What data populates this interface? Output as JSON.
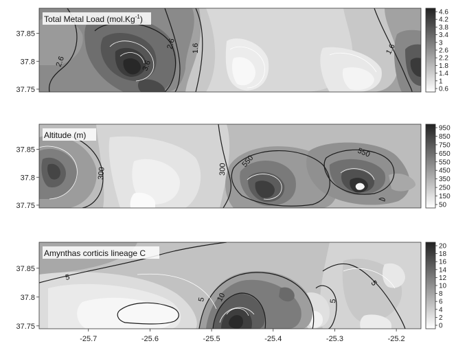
{
  "chart_data": [
    {
      "type": "heatmap",
      "title": "Total Metal Load (mol.Kg",
      "title_superscript": "-1",
      "title_suffix": ")",
      "xlim": [
        -25.78,
        -25.16
      ],
      "ylim": [
        37.745,
        37.895
      ],
      "yticks": [
        37.75,
        37.8,
        37.85
      ],
      "ytick_labels": [
        "37.75",
        "37.8",
        "37.85"
      ],
      "colorbar_ticks": [
        4.6,
        4.2,
        3.8,
        3.4,
        3,
        2.6,
        2.2,
        1.8,
        1.4,
        1,
        0.6
      ],
      "colorbar_labels": [
        "4.6",
        "4.2",
        "3.8",
        "3.4",
        "3",
        "2.6",
        "2.2",
        "1.8",
        "1.4",
        "1",
        "0.6"
      ],
      "contour_labels": [
        "2.6",
        "3.6",
        "2.6",
        "1.6",
        "1.6"
      ],
      "field": [
        {
          "x": -25.64,
          "y": 37.795,
          "value": 4.6
        },
        {
          "x": -25.62,
          "y": 37.76,
          "value": 3.8
        },
        {
          "x": -25.39,
          "y": 37.795,
          "value": 0.6
        },
        {
          "x": -25.29,
          "y": 37.8,
          "value": 1.0
        },
        {
          "x": -25.17,
          "y": 37.805,
          "value": 3.4
        },
        {
          "x": -25.76,
          "y": 37.87,
          "value": 2.6
        }
      ]
    },
    {
      "type": "heatmap",
      "title": "Altitude (m)",
      "xlim": [
        -25.78,
        -25.16
      ],
      "ylim": [
        37.745,
        37.895
      ],
      "yticks": [
        37.75,
        37.8,
        37.85
      ],
      "ytick_labels": [
        "37.75",
        "37.8",
        "37.85"
      ],
      "colorbar_ticks": [
        950,
        850,
        750,
        650,
        550,
        450,
        350,
        250,
        150,
        50
      ],
      "colorbar_labels": [
        "950",
        "850",
        "750",
        "650",
        "550",
        "450",
        "350",
        "250",
        "150",
        "50"
      ],
      "contour_labels": [
        "300",
        "300",
        "550",
        "550"
      ],
      "field": [
        {
          "x": -25.765,
          "y": 37.825,
          "value": 750
        },
        {
          "x": -25.445,
          "y": 37.785,
          "value": 750
        },
        {
          "x": -25.255,
          "y": 37.8,
          "value": 950
        },
        {
          "x": -25.61,
          "y": 37.775,
          "value": 50
        },
        {
          "x": -25.6,
          "y": 37.83,
          "value": 150
        }
      ]
    },
    {
      "type": "heatmap",
      "title": "Amynthas corticis lineage C",
      "xlim": [
        -25.78,
        -25.16
      ],
      "ylim": [
        37.745,
        37.895
      ],
      "xticks": [
        -25.7,
        -25.6,
        -25.5,
        -25.4,
        -25.3,
        -25.2
      ],
      "xtick_labels": [
        "-25.7",
        "-25.6",
        "-25.5",
        "-25.4",
        "-25.3",
        "-25.2"
      ],
      "yticks": [
        37.75,
        37.8,
        37.85
      ],
      "ytick_labels": [
        "37.75",
        "37.8",
        "37.85"
      ],
      "colorbar_ticks": [
        20,
        18,
        16,
        14,
        12,
        10,
        8,
        6,
        4,
        2,
        0
      ],
      "colorbar_labels": [
        "20",
        "18",
        "16",
        "14",
        "12",
        "10",
        "8",
        "6",
        "4",
        "2",
        "0"
      ],
      "contour_labels": [
        "5",
        "5",
        "10",
        "5",
        "5"
      ],
      "field": [
        {
          "x": -25.455,
          "y": 37.77,
          "value": 20
        },
        {
          "x": -25.43,
          "y": 37.8,
          "value": 10
        },
        {
          "x": -25.6,
          "y": 37.775,
          "value": 0
        },
        {
          "x": -25.3,
          "y": 37.77,
          "value": 0
        },
        {
          "x": -25.2,
          "y": 37.76,
          "value": 0
        }
      ]
    }
  ]
}
